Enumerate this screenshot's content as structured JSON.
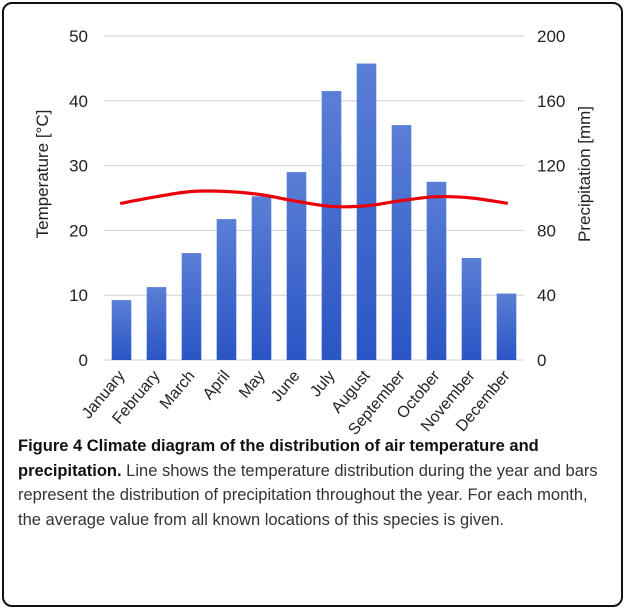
{
  "chart_data": {
    "type": "bar",
    "categories": [
      "January",
      "February",
      "March",
      "April",
      "May",
      "June",
      "July",
      "August",
      "September",
      "October",
      "November",
      "December"
    ],
    "series": [
      {
        "type": "bar",
        "axis": "right",
        "values": [
          37,
          45,
          66,
          87,
          101,
          116,
          166,
          183,
          145,
          110,
          63,
          41
        ]
      },
      {
        "type": "line",
        "axis": "left",
        "values": [
          24.2,
          25.2,
          26.0,
          26.0,
          25.5,
          24.5,
          23.7,
          23.8,
          24.6,
          25.2,
          25.0,
          24.2
        ]
      }
    ],
    "ylabel": "Temperature [°C]",
    "ylabel_right": "Precipitation [mm]",
    "ylim": [
      0,
      50
    ],
    "ylim_right": [
      0,
      200
    ],
    "yticks": [
      "0",
      "10",
      "20",
      "30",
      "40",
      "50"
    ],
    "yticks_right": [
      "0",
      "40",
      "80",
      "120",
      "160",
      "200"
    ],
    "grid": true,
    "colors": {
      "bar_top": "#5a7fd6",
      "bar_bottom": "#2a55c4",
      "line": "#e8000b",
      "grid": "#d0d0d0"
    }
  },
  "caption": {
    "label": "Figure 4 Climate diagram of the distribution of air temperature and precipitation.",
    "text": " Line shows the temperature distribution during the year and bars represent the distribution of precipitation throughout the year. For each month, the average value from all known locations of this species is given."
  }
}
